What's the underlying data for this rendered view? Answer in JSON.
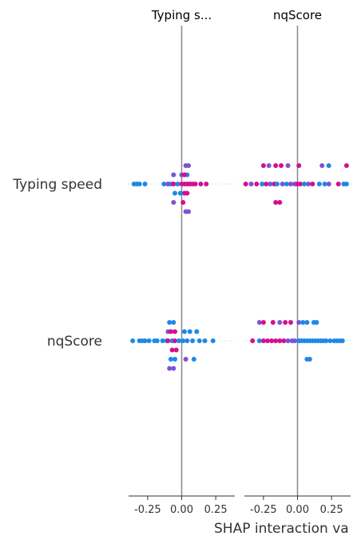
{
  "chart_data": [
    {
      "type": "scatter",
      "title": "Typing s...",
      "x_ticks": [
        "-0.25",
        "0.00",
        "0.25"
      ],
      "xlim": [
        -0.39,
        0.39
      ],
      "features": [
        "Typing speed",
        "nqScore"
      ],
      "colors": [
        "#1E88E5",
        "#7C52D6",
        "#D40F8E"
      ],
      "rows": [
        {
          "feature": "Typing speed",
          "points": [
            [
              0.03,
              -2,
              1
            ],
            [
              0.05,
              -2,
              1
            ],
            [
              -0.06,
              -1,
              1
            ],
            [
              0.0,
              -1,
              1
            ],
            [
              0.04,
              -1,
              0
            ],
            [
              0.02,
              -1,
              2
            ],
            [
              -0.35,
              0,
              0
            ],
            [
              -0.33,
              0,
              0
            ],
            [
              -0.31,
              0,
              0
            ],
            [
              -0.27,
              0,
              0
            ],
            [
              -0.13,
              0,
              0
            ],
            [
              -0.08,
              0,
              0
            ],
            [
              -0.06,
              0,
              2
            ],
            [
              -0.03,
              0,
              0
            ],
            [
              0.0,
              0,
              2
            ],
            [
              0.02,
              0,
              2
            ],
            [
              0.04,
              0,
              2
            ],
            [
              0.06,
              0,
              2
            ],
            [
              0.08,
              0,
              2
            ],
            [
              0.1,
              0,
              2
            ],
            [
              0.14,
              0,
              2
            ],
            [
              0.18,
              0,
              2
            ],
            [
              -0.1,
              0,
              1
            ],
            [
              -0.05,
              1,
              0
            ],
            [
              0.02,
              1,
              2
            ],
            [
              0.04,
              1,
              2
            ],
            [
              -0.01,
              1,
              0
            ],
            [
              -0.06,
              2,
              1
            ],
            [
              0.01,
              2,
              2
            ],
            [
              0.03,
              3,
              1
            ],
            [
              0.05,
              3,
              1
            ]
          ]
        },
        {
          "feature": "nqScore",
          "points": [
            [
              -0.09,
              -2,
              0
            ],
            [
              -0.06,
              -2,
              0
            ],
            [
              -0.1,
              -1,
              1
            ],
            [
              -0.08,
              -1,
              2
            ],
            [
              -0.05,
              -1,
              2
            ],
            [
              0.02,
              -1,
              0
            ],
            [
              0.06,
              -1,
              0
            ],
            [
              0.11,
              -1,
              0
            ],
            [
              -0.36,
              0,
              0
            ],
            [
              -0.31,
              0,
              0
            ],
            [
              -0.29,
              0,
              0
            ],
            [
              -0.27,
              0,
              0
            ],
            [
              -0.24,
              0,
              0
            ],
            [
              -0.2,
              0,
              0
            ],
            [
              -0.18,
              0,
              0
            ],
            [
              -0.14,
              0,
              0
            ],
            [
              -0.11,
              0,
              0
            ],
            [
              -0.1,
              0,
              2
            ],
            [
              -0.07,
              0,
              0
            ],
            [
              -0.05,
              0,
              2
            ],
            [
              -0.02,
              0,
              0
            ],
            [
              0.01,
              0,
              0
            ],
            [
              0.04,
              0,
              0
            ],
            [
              0.08,
              0,
              0
            ],
            [
              0.13,
              0,
              0
            ],
            [
              0.17,
              0,
              0
            ],
            [
              0.23,
              0,
              0
            ],
            [
              -0.07,
              1,
              2
            ],
            [
              -0.04,
              1,
              2
            ],
            [
              -0.08,
              2,
              0
            ],
            [
              -0.05,
              2,
              0
            ],
            [
              0.03,
              2,
              1
            ],
            [
              0.09,
              2,
              0
            ],
            [
              -0.09,
              3,
              1
            ],
            [
              -0.06,
              3,
              1
            ]
          ]
        }
      ]
    },
    {
      "type": "scatter",
      "title": "nqScore",
      "x_ticks": [
        "-0.25",
        "0.00",
        "0.25"
      ],
      "xlim": [
        -0.39,
        0.39
      ],
      "features": [
        "Typing speed",
        "nqScore"
      ],
      "colors": [
        "#1E88E5",
        "#7C52D6",
        "#D40F8E"
      ],
      "rows": [
        {
          "feature": "Typing speed",
          "points": [
            [
              -0.25,
              -2,
              2
            ],
            [
              -0.21,
              -2,
              1
            ],
            [
              -0.16,
              -2,
              2
            ],
            [
              -0.12,
              -2,
              2
            ],
            [
              -0.07,
              -2,
              1
            ],
            [
              0.01,
              -2,
              2
            ],
            [
              0.18,
              -2,
              1
            ],
            [
              0.23,
              -2,
              0
            ],
            [
              0.36,
              -2,
              2
            ],
            [
              -0.38,
              0,
              2
            ],
            [
              -0.34,
              0,
              1
            ],
            [
              -0.3,
              0,
              2
            ],
            [
              -0.26,
              0,
              0
            ],
            [
              -0.23,
              0,
              2
            ],
            [
              -0.2,
              0,
              1
            ],
            [
              -0.17,
              0,
              2
            ],
            [
              -0.15,
              0,
              0
            ],
            [
              -0.11,
              0,
              1
            ],
            [
              -0.08,
              0,
              0
            ],
            [
              -0.05,
              0,
              1
            ],
            [
              -0.02,
              0,
              1
            ],
            [
              0.0,
              0,
              2
            ],
            [
              0.02,
              0,
              2
            ],
            [
              0.05,
              0,
              0
            ],
            [
              0.08,
              0,
              1
            ],
            [
              0.11,
              0,
              2
            ],
            [
              0.16,
              0,
              0
            ],
            [
              0.2,
              0,
              0
            ],
            [
              0.23,
              0,
              1
            ],
            [
              0.3,
              0,
              2
            ],
            [
              0.34,
              0,
              0
            ],
            [
              0.36,
              0,
              0
            ],
            [
              -0.16,
              2,
              2
            ],
            [
              -0.13,
              2,
              2
            ]
          ]
        },
        {
          "feature": "nqScore",
          "points": [
            [
              -0.28,
              -2,
              1
            ],
            [
              -0.25,
              -2,
              2
            ],
            [
              -0.18,
              -2,
              2
            ],
            [
              -0.13,
              -2,
              1
            ],
            [
              -0.09,
              -2,
              2
            ],
            [
              -0.05,
              -2,
              2
            ],
            [
              0.01,
              -2,
              1
            ],
            [
              0.04,
              -2,
              0
            ],
            [
              0.07,
              -2,
              0
            ],
            [
              0.12,
              -2,
              0
            ],
            [
              0.14,
              -2,
              0
            ],
            [
              -0.33,
              0,
              2
            ],
            [
              -0.28,
              0,
              0
            ],
            [
              -0.25,
              0,
              2
            ],
            [
              -0.22,
              0,
              2
            ],
            [
              -0.19,
              0,
              2
            ],
            [
              -0.16,
              0,
              2
            ],
            [
              -0.13,
              0,
              2
            ],
            [
              -0.1,
              0,
              2
            ],
            [
              -0.07,
              0,
              1
            ],
            [
              -0.04,
              0,
              1
            ],
            [
              -0.02,
              0,
              1
            ],
            [
              0.01,
              0,
              0
            ],
            [
              0.03,
              0,
              0
            ],
            [
              0.05,
              0,
              0
            ],
            [
              0.07,
              0,
              0
            ],
            [
              0.09,
              0,
              0
            ],
            [
              0.11,
              0,
              0
            ],
            [
              0.13,
              0,
              0
            ],
            [
              0.15,
              0,
              0
            ],
            [
              0.17,
              0,
              0
            ],
            [
              0.19,
              0,
              0
            ],
            [
              0.21,
              0,
              0
            ],
            [
              0.24,
              0,
              0
            ],
            [
              0.27,
              0,
              0
            ],
            [
              0.29,
              0,
              0
            ],
            [
              0.31,
              0,
              0
            ],
            [
              0.33,
              0,
              0
            ],
            [
              0.07,
              2,
              0
            ],
            [
              0.09,
              2,
              0
            ]
          ]
        }
      ]
    }
  ],
  "xlabel": "SHAP interaction va"
}
